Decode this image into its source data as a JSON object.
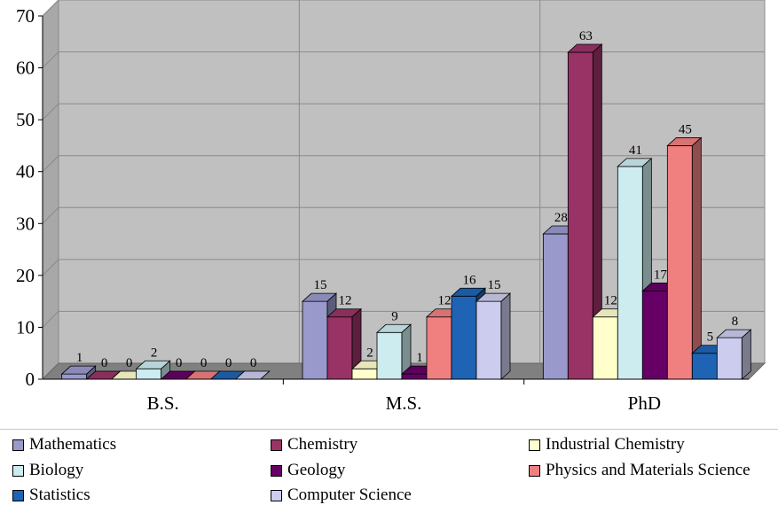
{
  "chart_data": {
    "type": "bar",
    "title": "",
    "xlabel": "",
    "ylabel": "",
    "categories": [
      "B.S.",
      "M.S.",
      "PhD"
    ],
    "ylim": [
      0,
      70
    ],
    "yticks": [
      "0",
      "10",
      "20",
      "30",
      "40",
      "50",
      "60",
      "70"
    ],
    "grid": true,
    "legend_position": "bottom",
    "series": [
      {
        "name": "Mathematics",
        "values": [
          1,
          15,
          28
        ],
        "color": "#9999cc"
      },
      {
        "name": "Chemistry",
        "values": [
          0,
          12,
          63
        ],
        "color": "#993366"
      },
      {
        "name": "Industrial Chemistry",
        "values": [
          0,
          2,
          12
        ],
        "color": "#ffffcc"
      },
      {
        "name": "Biology",
        "values": [
          2,
          9,
          41
        ],
        "color": "#ccecf0"
      },
      {
        "name": "Geology",
        "values": [
          0,
          1,
          17
        ],
        "color": "#660066"
      },
      {
        "name": "Physics and Materials Science",
        "values": [
          0,
          12,
          45
        ],
        "color": "#f08080"
      },
      {
        "name": "Statistics",
        "values": [
          0,
          16,
          5
        ],
        "color": "#1f64b4"
      },
      {
        "name": "Computer Science",
        "values": [
          0,
          15,
          8
        ],
        "color": "#ccccee"
      }
    ]
  }
}
